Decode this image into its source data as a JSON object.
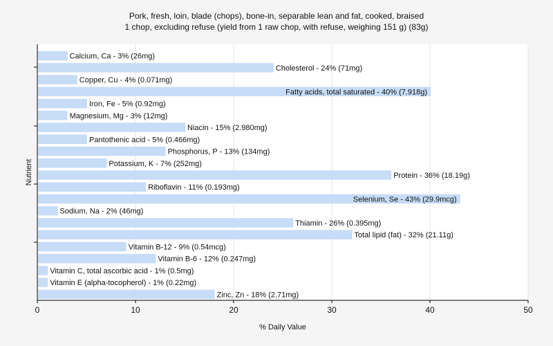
{
  "chart_data": {
    "type": "bar",
    "orientation": "horizontal",
    "title": [
      "Pork, fresh, loin, blade (chops), bone-in, separable lean and fat, cooked, braised",
      "1 chop, excluding refuse (yield from 1 raw chop, with refuse, weighing 151 g) (83g)"
    ],
    "xlabel": "% Daily Value",
    "ylabel": "Nutrient",
    "xlim": [
      0,
      50
    ],
    "xticks": [
      0,
      10,
      20,
      30,
      40,
      50
    ],
    "grid": true,
    "bar_color": "#c6dcf7",
    "categories": [
      "Calcium, Ca",
      "Cholesterol",
      "Copper, Cu",
      "Fatty acids, total saturated",
      "Iron, Fe",
      "Magnesium, Mg",
      "Niacin",
      "Pantothenic acid",
      "Phosphorus, P",
      "Potassium, K",
      "Protein",
      "Riboflavin",
      "Selenium, Se",
      "Sodium, Na",
      "Thiamin",
      "Total lipid (fat)",
      "Vitamin B-12",
      "Vitamin B-6",
      "Vitamin C, total ascorbic acid",
      "Vitamin E (alpha-tocopherol)",
      "Zinc, Zn"
    ],
    "values": [
      3,
      24,
      4,
      40,
      5,
      3,
      15,
      5,
      13,
      7,
      36,
      11,
      43,
      2,
      26,
      32,
      9,
      12,
      1,
      1,
      18
    ],
    "labels": [
      "Calcium, Ca - 3% (26mg)",
      "Cholesterol - 24% (71mg)",
      "Copper, Cu - 4% (0.071mg)",
      "Fatty acids, total saturated - 40% (7.918g)",
      "Iron, Fe - 5% (0.92mg)",
      "Magnesium, Mg - 3% (12mg)",
      "Niacin - 15% (2.980mg)",
      "Pantothenic acid - 5% (0.466mg)",
      "Phosphorus, P - 13% (134mg)",
      "Potassium, K - 7% (252mg)",
      "Protein - 36% (18.19g)",
      "Riboflavin - 11% (0.193mg)",
      "Selenium, Se - 43% (29.9mcg)",
      "Sodium, Na - 2% (46mg)",
      "Thiamin - 26% (0.395mg)",
      "Total lipid (fat) - 32% (21.11g)",
      "Vitamin B-12 - 9% (0.54mcg)",
      "Vitamin B-6 - 12% (0.247mg)",
      "Vitamin C, total ascorbic acid - 1% (0.5mg)",
      "Vitamin E (alpha-tocopherol) - 1% (0.22mg)",
      "Zinc, Zn - 18% (2.71mg)"
    ]
  }
}
